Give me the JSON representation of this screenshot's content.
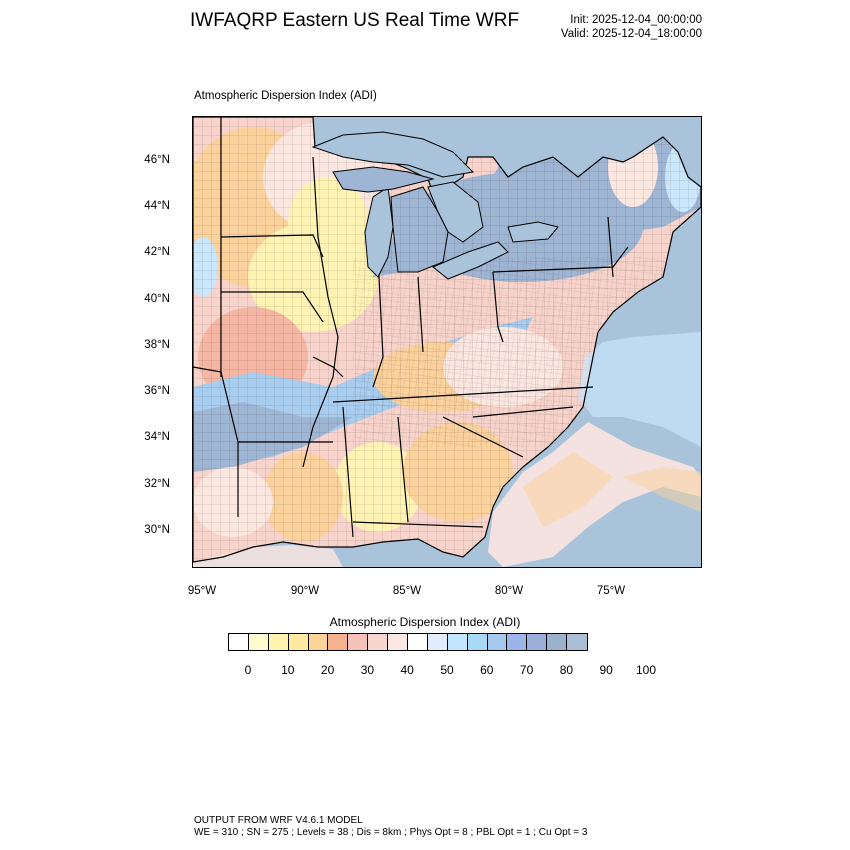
{
  "header": {
    "title": "IWFAQRP Eastern US Real Time WRF",
    "init": "Init: 2025-12-04_00:00:00",
    "valid": "Valid: 2025-12-04_18:00:00"
  },
  "plot": {
    "title": "Atmospheric Dispersion Index   (ADI)",
    "lat_labels": [
      "46°N",
      "44°N",
      "42°N",
      "40°N",
      "38°N",
      "36°N",
      "34°N",
      "32°N",
      "30°N"
    ],
    "lon_labels": [
      "95°W",
      "90°W",
      "85°W",
      "80°W",
      "75°W"
    ]
  },
  "colorbar": {
    "title": "Atmospheric Dispersion Index  (ADI)",
    "labels": [
      "0",
      "10",
      "20",
      "30",
      "40",
      "50",
      "60",
      "70",
      "80",
      "90",
      "100"
    ],
    "colors": [
      "#ffffff",
      "#fffbd0",
      "#fff3b0",
      "#fde9a0",
      "#fbd49a",
      "#f6b290",
      "#f4c2b8",
      "#f8d6d0",
      "#fbe8e4",
      "#ffffff",
      "#e3ecfa",
      "#c2e6fb",
      "#a6daf6",
      "#a5c9ef",
      "#9bb6e6",
      "#9cafd9",
      "#9ab2cc",
      "#a8bfd4"
    ]
  },
  "map": {
    "water_color": "#a9c3da",
    "colors": {
      "yellow": "#fff3b4",
      "orange": "#fbd19c",
      "salmon": "#f5b6a4",
      "pink": "#f8d3cb",
      "light_pink": "#fbe6e0",
      "light_blue": "#c9e6fb",
      "mid_blue": "#a8cdef",
      "blue_gray": "#9fb5d4"
    }
  },
  "footer": {
    "line1": "OUTPUT FROM WRF V4.6.1 MODEL",
    "line2": "WE = 310 ; SN = 275 ; Levels = 38 ; Dis = 8km ; Phys Opt = 8 ; PBL Opt = 1 ; Cu Opt = 3"
  }
}
